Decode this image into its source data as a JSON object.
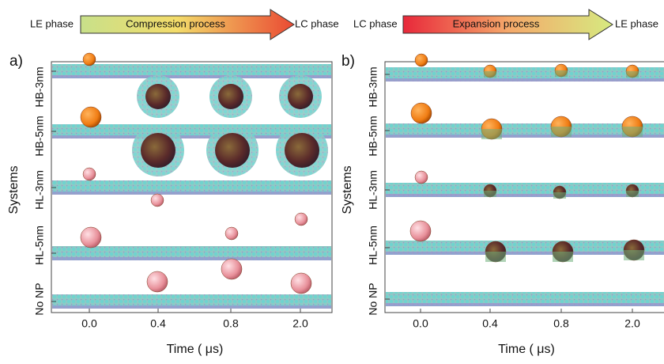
{
  "panels": [
    {
      "label": "a)",
      "arrow": {
        "start": "LE phase",
        "process": "Compression process",
        "end": "LC phase"
      },
      "y_label": "Systems",
      "x_label": "Time ( μs)",
      "x_ticks": [
        "0.0",
        "0.4",
        "0.8",
        "2.0"
      ],
      "systems": [
        "HB-3nm",
        "HB-5nm",
        "HL-3nm",
        "HL-5nm",
        "No NP"
      ]
    },
    {
      "label": "b)",
      "arrow": {
        "start": "LC phase",
        "process": "Expansion process",
        "end": "LE phase"
      },
      "y_label": "Systems",
      "x_label": "Time ( μs)",
      "x_ticks": [
        "0.0",
        "0.4",
        "0.8",
        "2.0"
      ],
      "systems": [
        "HB-3nm",
        "HB-5nm",
        "HL-3nm",
        "HL-5nm",
        "No NP"
      ]
    }
  ]
}
